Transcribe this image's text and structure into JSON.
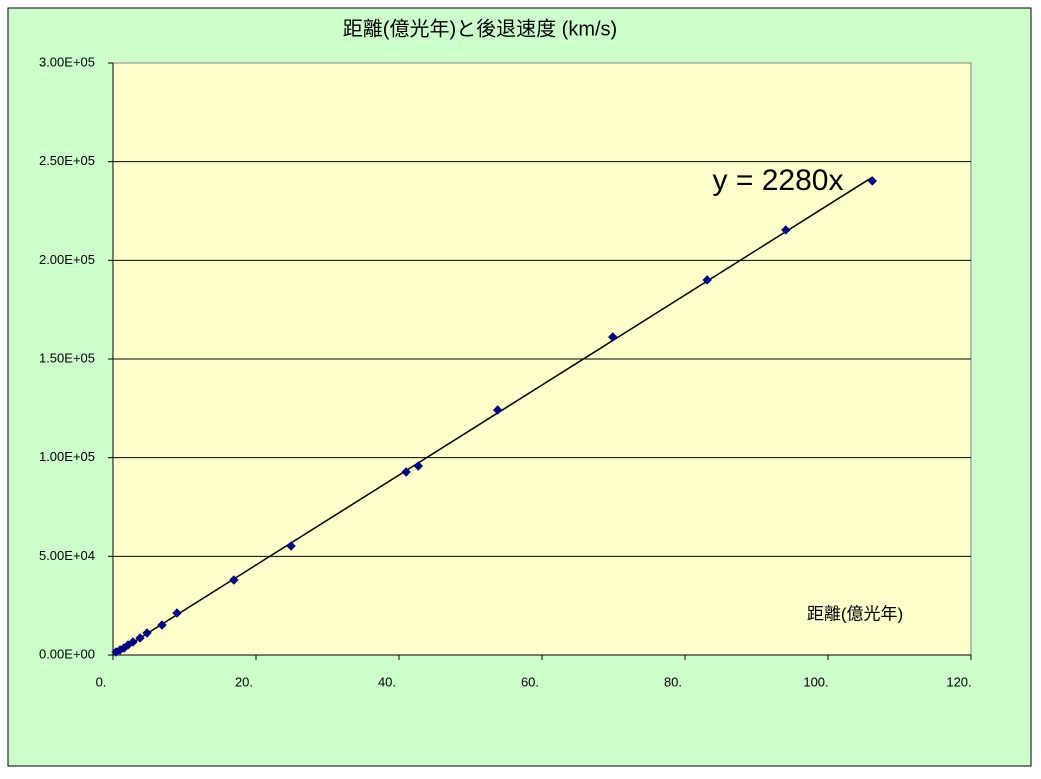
{
  "chart_data": {
    "type": "scatter",
    "title": "距離(億光年)と後退速度 (km/s)",
    "x_label": "距離(億光年)",
    "x": [
      0.42,
      0.98,
      1.54,
      2.1,
      2.8,
      3.78,
      4.76,
      6.85,
      8.95,
      16.9,
      24.9,
      41.0,
      42.7,
      53.8,
      69.9,
      83.1,
      94.1,
      106.2
    ],
    "values": [
      1520,
      2530,
      3540,
      5070,
      6590,
      8620,
      11150,
      15200,
      21290,
      38000,
      55240,
      92730,
      95780,
      124160,
      161150,
      190050,
      215390,
      240220
    ],
    "color": "#000080",
    "trendline_slope": 2280,
    "trendline_label": "y = 2280x",
    "xlim": [
      0,
      120
    ],
    "xticks": [
      {
        "value": 0,
        "label": "0."
      },
      {
        "value": 20,
        "label": "20."
      },
      {
        "value": 40,
        "label": "40."
      },
      {
        "value": 60,
        "label": "60."
      },
      {
        "value": 80,
        "label": "80."
      },
      {
        "value": 100,
        "label": "100."
      },
      {
        "value": 120,
        "label": "120."
      }
    ],
    "ylim": [
      0,
      300000
    ],
    "yticks": [
      {
        "value": 0,
        "label": "0.00E+00"
      },
      {
        "value": 50000,
        "label": "5.00E+04"
      },
      {
        "value": 100000,
        "label": "1.00E+05"
      },
      {
        "value": 150000,
        "label": "1.50E+05"
      },
      {
        "value": 200000,
        "label": "2.00E+05"
      },
      {
        "value": 250000,
        "label": "2.50E+05"
      },
      {
        "value": 300000,
        "label": "3.00E+05"
      }
    ],
    "grid": true
  }
}
